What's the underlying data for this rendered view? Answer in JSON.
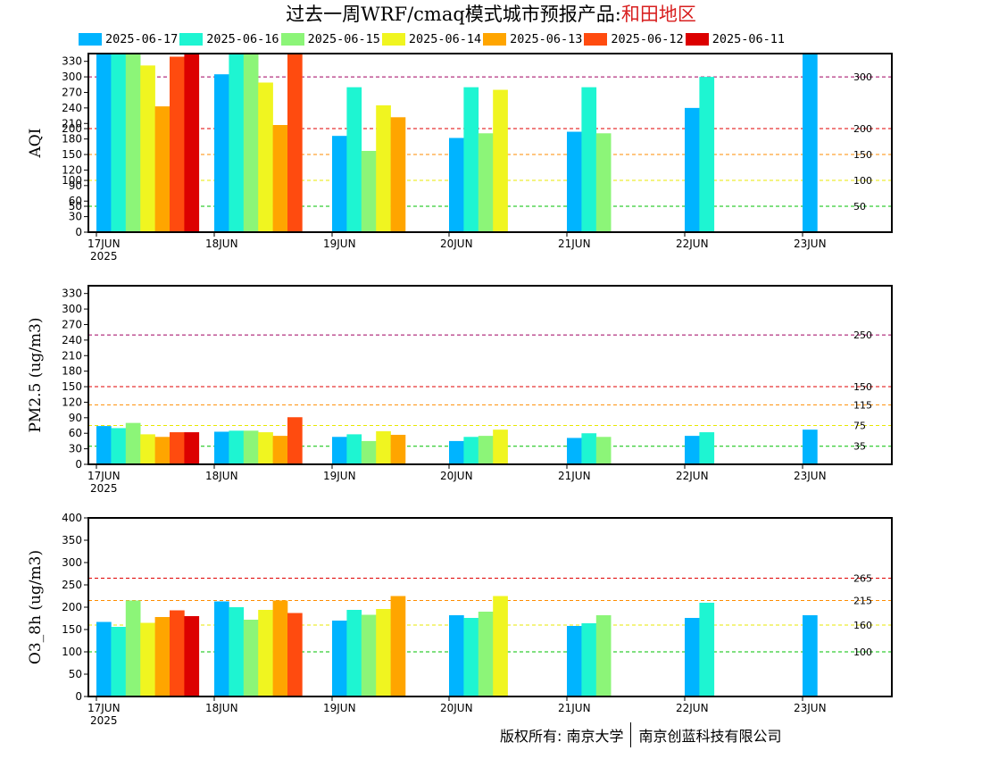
{
  "title": {
    "prefix": "过去一周WRF/cmaq模式城市预报产品:",
    "region": "和田地区"
  },
  "legend": [
    {
      "label": "2025-06-17",
      "color": "#00b4ff"
    },
    {
      "label": "2025-06-16",
      "color": "#1ef5d2"
    },
    {
      "label": "2025-06-15",
      "color": "#8cf578"
    },
    {
      "label": "2025-06-14",
      "color": "#f0f520"
    },
    {
      "label": "2025-06-13",
      "color": "#ffa500"
    },
    {
      "label": "2025-06-12",
      "color": "#ff4b0f"
    },
    {
      "label": "2025-06-11",
      "color": "#dc0000"
    }
  ],
  "copyright": {
    "left": "版权所有: 南京大学",
    "right": "南京创蓝科技有限公司"
  },
  "chart_data": [
    {
      "type": "bar",
      "ylabel": "AQI",
      "ylim": [
        0,
        345
      ],
      "yticks": [
        0,
        30,
        50,
        60,
        90,
        100,
        120,
        150,
        180,
        200,
        210,
        240,
        270,
        300,
        330
      ],
      "categories": [
        "17JUN",
        "18JUN",
        "19JUN",
        "20JUN",
        "21JUN",
        "22JUN",
        "23JUN"
      ],
      "first_category_sublabel": "2025",
      "reference_lines": [
        {
          "value": 50,
          "label": "50",
          "color": "#00c000"
        },
        {
          "value": 100,
          "label": "100",
          "color": "#e8e800"
        },
        {
          "value": 150,
          "label": "150",
          "color": "#ff8c00"
        },
        {
          "value": 200,
          "label": "200",
          "color": "#e00000"
        },
        {
          "value": 300,
          "label": "300",
          "color": "#a00060"
        }
      ],
      "series": [
        {
          "name": "2025-06-17",
          "values": [
            345,
            305,
            186,
            182,
            194,
            240,
            345
          ]
        },
        {
          "name": "2025-06-16",
          "values": [
            345,
            345,
            280,
            280,
            280,
            300,
            null
          ]
        },
        {
          "name": "2025-06-15",
          "values": [
            345,
            345,
            157,
            191,
            191,
            null,
            null
          ]
        },
        {
          "name": "2025-06-14",
          "values": [
            322,
            289,
            245,
            275,
            null,
            null,
            null
          ]
        },
        {
          "name": "2025-06-13",
          "values": [
            243,
            207,
            222,
            null,
            null,
            null,
            null
          ]
        },
        {
          "name": "2025-06-12",
          "values": [
            339,
            345,
            null,
            null,
            null,
            null,
            null
          ]
        },
        {
          "name": "2025-06-11",
          "values": [
            345,
            null,
            null,
            null,
            null,
            null,
            null
          ]
        }
      ]
    },
    {
      "type": "bar",
      "ylabel": "PM2.5 (ug/m3)",
      "ylim": [
        0,
        345
      ],
      "yticks": [
        0,
        30,
        60,
        90,
        120,
        150,
        180,
        210,
        240,
        270,
        300,
        330
      ],
      "categories": [
        "17JUN",
        "18JUN",
        "19JUN",
        "20JUN",
        "21JUN",
        "22JUN",
        "23JUN"
      ],
      "first_category_sublabel": "2025",
      "reference_lines": [
        {
          "value": 35,
          "label": "35",
          "color": "#00c000"
        },
        {
          "value": 75,
          "label": "75",
          "color": "#e8e800"
        },
        {
          "value": 115,
          "label": "115",
          "color": "#ff8c00"
        },
        {
          "value": 150,
          "label": "150",
          "color": "#e00000"
        },
        {
          "value": 250,
          "label": "250",
          "color": "#a00060"
        }
      ],
      "series": [
        {
          "name": "2025-06-17",
          "values": [
            74,
            63,
            53,
            45,
            51,
            55,
            67
          ]
        },
        {
          "name": "2025-06-16",
          "values": [
            70,
            65,
            58,
            53,
            60,
            62,
            null
          ]
        },
        {
          "name": "2025-06-15",
          "values": [
            80,
            65,
            45,
            55,
            53,
            null,
            null
          ]
        },
        {
          "name": "2025-06-14",
          "values": [
            58,
            62,
            64,
            67,
            null,
            null,
            null
          ]
        },
        {
          "name": "2025-06-13",
          "values": [
            53,
            55,
            57,
            null,
            null,
            null,
            null
          ]
        },
        {
          "name": "2025-06-12",
          "values": [
            62,
            91,
            null,
            null,
            null,
            null,
            null
          ]
        },
        {
          "name": "2025-06-11",
          "values": [
            62,
            null,
            null,
            null,
            null,
            null,
            null
          ]
        }
      ]
    },
    {
      "type": "bar",
      "ylabel": "O3_8h (ug/m3)",
      "ylim": [
        0,
        400
      ],
      "yticks": [
        0,
        50,
        100,
        150,
        200,
        250,
        300,
        350,
        400
      ],
      "categories": [
        "17JUN",
        "18JUN",
        "19JUN",
        "20JUN",
        "21JUN",
        "22JUN",
        "23JUN"
      ],
      "first_category_sublabel": "2025",
      "reference_lines": [
        {
          "value": 100,
          "label": "100",
          "color": "#00c000"
        },
        {
          "value": 160,
          "label": "160",
          "color": "#e8e800"
        },
        {
          "value": 215,
          "label": "215",
          "color": "#ff8c00"
        },
        {
          "value": 265,
          "label": "265",
          "color": "#e00000"
        }
      ],
      "series": [
        {
          "name": "2025-06-17",
          "values": [
            167,
            213,
            170,
            182,
            158,
            176,
            182
          ]
        },
        {
          "name": "2025-06-16",
          "values": [
            156,
            200,
            194,
            176,
            164,
            210,
            null
          ]
        },
        {
          "name": "2025-06-15",
          "values": [
            215,
            172,
            183,
            190,
            182,
            null,
            null
          ]
        },
        {
          "name": "2025-06-14",
          "values": [
            165,
            194,
            196,
            225,
            null,
            null,
            null
          ]
        },
        {
          "name": "2025-06-13",
          "values": [
            178,
            215,
            225,
            null,
            null,
            null,
            null
          ]
        },
        {
          "name": "2025-06-12",
          "values": [
            193,
            187,
            null,
            null,
            null,
            null,
            null
          ]
        },
        {
          "name": "2025-06-11",
          "values": [
            180,
            null,
            null,
            null,
            null,
            null,
            null
          ]
        }
      ]
    }
  ]
}
